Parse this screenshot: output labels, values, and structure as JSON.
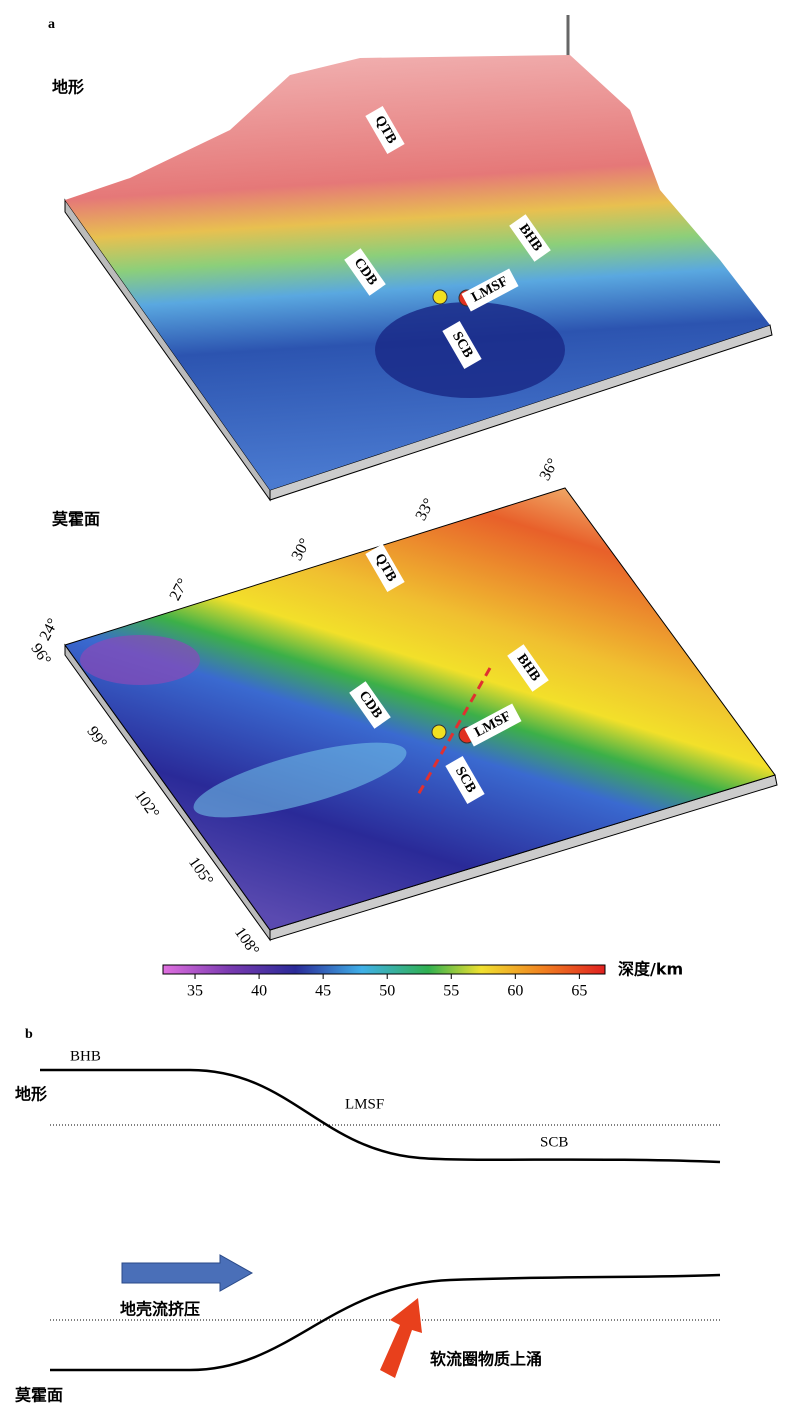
{
  "panel_a": {
    "label": "a",
    "topography_title": "地形",
    "moho_title": "莫霍面",
    "topo_labels": [
      "QTB",
      "BHB",
      "CDB",
      "LMSF",
      "SCB"
    ],
    "moho_labels": [
      "QTB",
      "BHB",
      "CDB",
      "LMSF",
      "SCB"
    ],
    "latitude_ticks": [
      "24°",
      "27°",
      "30°",
      "33°",
      "36°"
    ],
    "longitude_ticks": [
      "96°",
      "99°",
      "102°",
      "105°",
      "108°"
    ],
    "colorbar": {
      "label": "深度/km",
      "lim": [
        32.5,
        67
      ],
      "ticks": [
        35,
        40,
        45,
        50,
        55,
        60,
        65
      ]
    }
  },
  "panel_b": {
    "label": "b",
    "topography_title": "地形",
    "moho_title": "莫霍面",
    "bhb": "BHB",
    "lmsf": "LMSF",
    "scb": "SCB",
    "crustal_flow": "地壳流挤压",
    "upwelling": "软流圈物质上涌"
  }
}
